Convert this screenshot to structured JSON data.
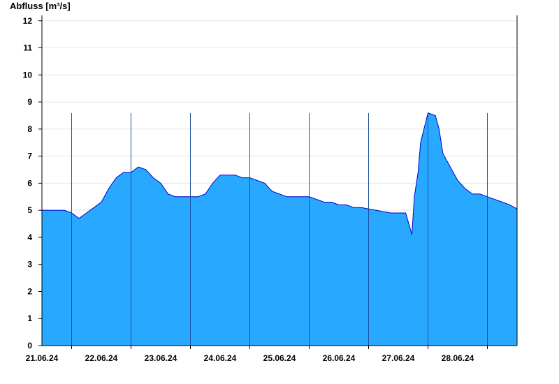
{
  "chart_data": {
    "type": "area",
    "title": "",
    "ylabel": "Abfluss [m³/s]",
    "xlabel": "",
    "ylim": [
      0,
      12.2
    ],
    "yticks": [
      0,
      1,
      2,
      3,
      4,
      5,
      6,
      7,
      8,
      9,
      10,
      11,
      12
    ],
    "xlim": [
      "2024-06-20T12:00",
      "2024-06-28T12:00"
    ],
    "day_boundaries": [
      "2024-06-21T00:00",
      "2024-06-22T00:00",
      "2024-06-23T00:00",
      "2024-06-24T00:00",
      "2024-06-25T00:00",
      "2024-06-26T00:00",
      "2024-06-27T00:00",
      "2024-06-28T00:00"
    ],
    "xticks": [
      {
        "date": "2024-06-21T00:00",
        "label": "21.06.24"
      },
      {
        "date": "2024-06-22T00:00",
        "label": "22.06.24"
      },
      {
        "date": "2024-06-23T00:00",
        "label": "23.06.24"
      },
      {
        "date": "2024-06-24T00:00",
        "label": "24.06.24"
      },
      {
        "date": "2024-06-25T00:00",
        "label": "25.06.24"
      },
      {
        "date": "2024-06-26T00:00",
        "label": "26.06.24"
      },
      {
        "date": "2024-06-27T00:00",
        "label": "27.06.24"
      },
      {
        "date": "2024-06-28T00:00",
        "label": "28.06.24"
      }
    ],
    "grid": true,
    "colors": {
      "fill": "#29a8ff",
      "line": "#0000cc",
      "grid": "#e6e6e6",
      "axis": "#000000"
    },
    "series": [
      {
        "x": [
          "2024-06-20T12:00",
          "2024-06-20T15:00",
          "2024-06-20T18:00",
          "2024-06-20T21:00",
          "2024-06-21T00:00",
          "2024-06-21T03:00",
          "2024-06-21T06:00",
          "2024-06-21T09:00",
          "2024-06-21T12:00",
          "2024-06-21T15:00",
          "2024-06-21T18:00",
          "2024-06-21T21:00",
          "2024-06-22T00:00",
          "2024-06-22T03:00",
          "2024-06-22T06:00",
          "2024-06-22T09:00",
          "2024-06-22T12:00",
          "2024-06-22T15:00",
          "2024-06-22T18:00",
          "2024-06-22T21:00",
          "2024-06-23T00:00",
          "2024-06-23T03:00",
          "2024-06-23T06:00",
          "2024-06-23T09:00",
          "2024-06-23T12:00",
          "2024-06-23T15:00",
          "2024-06-23T18:00",
          "2024-06-23T21:00",
          "2024-06-24T00:00",
          "2024-06-24T03:00",
          "2024-06-24T06:00",
          "2024-06-24T09:00",
          "2024-06-24T12:00",
          "2024-06-24T15:00",
          "2024-06-24T18:00",
          "2024-06-24T21:00",
          "2024-06-25T00:00",
          "2024-06-25T03:00",
          "2024-06-25T06:00",
          "2024-06-25T09:00",
          "2024-06-25T12:00",
          "2024-06-25T15:00",
          "2024-06-25T18:00",
          "2024-06-25T21:00",
          "2024-06-26T00:00",
          "2024-06-26T03:00",
          "2024-06-26T06:00",
          "2024-06-26T09:00",
          "2024-06-26T12:00",
          "2024-06-26T15:00",
          "2024-06-26T17:30",
          "2024-06-26T18:30",
          "2024-06-26T20:00",
          "2024-06-26T21:00",
          "2024-06-27T00:00",
          "2024-06-27T03:00",
          "2024-06-27T04:30",
          "2024-06-27T06:00",
          "2024-06-27T09:00",
          "2024-06-27T12:00",
          "2024-06-27T15:00",
          "2024-06-27T18:00",
          "2024-06-27T21:00",
          "2024-06-28T00:00",
          "2024-06-28T03:00",
          "2024-06-28T06:00",
          "2024-06-28T09:00",
          "2024-06-28T12:00"
        ],
        "y": [
          5.0,
          5.0,
          5.0,
          5.0,
          4.9,
          4.7,
          4.9,
          5.1,
          5.3,
          5.8,
          6.2,
          6.4,
          6.4,
          6.6,
          6.5,
          6.2,
          6.0,
          5.6,
          5.5,
          5.5,
          5.5,
          5.5,
          5.6,
          6.0,
          6.3,
          6.3,
          6.3,
          6.2,
          6.2,
          6.1,
          6.0,
          5.7,
          5.6,
          5.5,
          5.5,
          5.5,
          5.5,
          5.4,
          5.3,
          5.3,
          5.2,
          5.2,
          5.1,
          5.1,
          5.05,
          5.0,
          4.95,
          4.9,
          4.9,
          4.9,
          4.1,
          5.5,
          6.4,
          7.5,
          8.6,
          8.5,
          8.0,
          7.1,
          6.6,
          6.1,
          5.8,
          5.6,
          5.6,
          5.5,
          5.4,
          5.3,
          5.2,
          5.05
        ]
      }
    ]
  }
}
